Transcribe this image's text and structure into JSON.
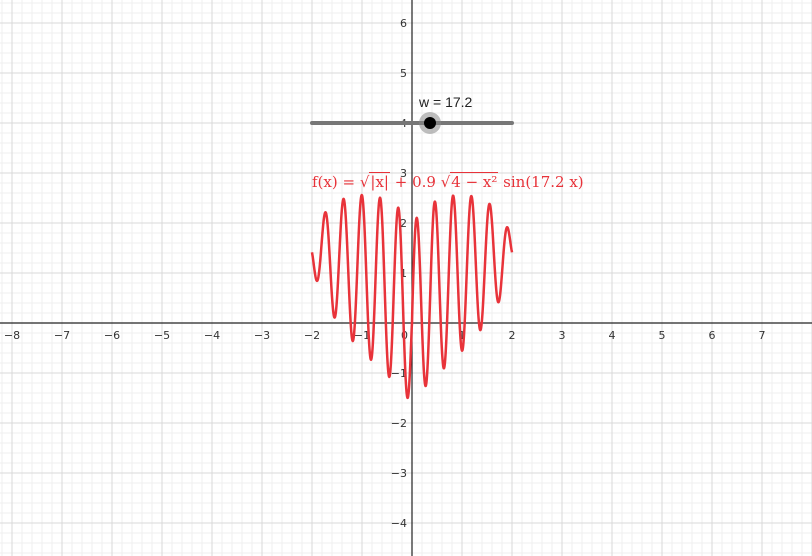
{
  "graph": {
    "x_range": [
      -8.2,
      8.1
    ],
    "y_range": [
      -4.6,
      6.5
    ],
    "x_ticks": [
      "−8",
      "−7",
      "−6",
      "−5",
      "−4",
      "−3",
      "−2",
      "−1",
      "0",
      "1",
      "2",
      "3",
      "4",
      "5",
      "6",
      "7"
    ],
    "y_ticks": [
      "6",
      "5",
      "4",
      "3",
      "2",
      "1",
      "−1",
      "−2",
      "−3",
      "−4"
    ],
    "grid": true,
    "axis_color": "#222222",
    "grid_major_color": "#d8d8d8",
    "grid_minor_color": "#efefef"
  },
  "slider": {
    "name": "w",
    "value": 17.2,
    "label": "w = 17.2",
    "min_x": -2,
    "max_x": 2,
    "y": 4,
    "color": "#777777"
  },
  "function": {
    "label_prefix": "f(x) = ",
    "label_sqrt_arg": "|x|",
    "label_mid": " + 0.9 ",
    "label_sqrt2_arg": "4 − x²",
    "label_suffix": " sin(17.2 x)",
    "domain": [
      -2,
      2
    ],
    "color": "#e8333a"
  }
}
